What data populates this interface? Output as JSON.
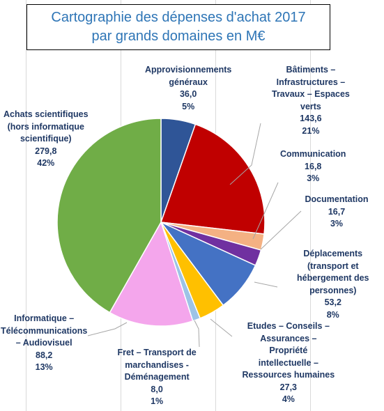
{
  "title": {
    "line1": "Cartographie des dépenses d'achat 2017",
    "line2": "par grands domaines en M€"
  },
  "chart_data": {
    "type": "pie",
    "title": "Cartographie des dépenses d'achat 2017 par grands domaines en M€",
    "slices": [
      {
        "label": "Approvisionnements généraux",
        "value": 36.0,
        "value_text": "36,0",
        "percent_text": "5%",
        "color": "#2f5597"
      },
      {
        "label": "Bâtiments – Infrastructures – Travaux – Espaces verts",
        "value": 143.6,
        "value_text": "143,6",
        "percent_text": "21%",
        "color": "#c00000"
      },
      {
        "label": "Communication",
        "value": 16.8,
        "value_text": "16,8",
        "percent_text": "3%",
        "color": "#f4b183"
      },
      {
        "label": "Documentation",
        "value": 16.7,
        "value_text": "16,7",
        "percent_text": "3%",
        "color": "#7030a0"
      },
      {
        "label": "Déplacements (transport et hébergement des personnes)",
        "value": 53.2,
        "value_text": "53,2",
        "percent_text": "8%",
        "color": "#4472c4"
      },
      {
        "label": "Etudes – Conseils – Assurances – Propriété intellectuelle – Ressources humaines",
        "value": 27.3,
        "value_text": "27,3",
        "percent_text": "4%",
        "color": "#ffc000"
      },
      {
        "label": "Fret – Transport de marchandises - Déménagement",
        "value": 8.0,
        "value_text": "8,0",
        "percent_text": "1%",
        "color": "#9dc3e6"
      },
      {
        "label": "Informatique – Télécommunications – Audiovisuel",
        "value": 88.2,
        "value_text": "88,2",
        "percent_text": "13%",
        "color": "#f4a6ec"
      },
      {
        "label": "Achats scientifiques (hors informatique scientifique)",
        "value": 279.8,
        "value_text": "279,8",
        "percent_text": "42%",
        "color": "#70ad47"
      }
    ],
    "label_lines": [
      [
        "Approvisionnements",
        "généraux"
      ],
      [
        "Bâtiments –",
        "Infrastructures –",
        "Travaux – Espaces",
        "verts"
      ],
      [
        "Communication"
      ],
      [
        "Documentation"
      ],
      [
        "Déplacements",
        "(transport et",
        "hébergement des",
        "personnes)"
      ],
      [
        "Etudes – Conseils –",
        "Assurances –",
        "Propriété",
        "intellectuelle –",
        "Ressources humaines"
      ],
      [
        "Fret – Transport de",
        "marchandises -",
        "Déménagement"
      ],
      [
        "Informatique –",
        "Télécommunications",
        "– Audiovisuel"
      ],
      [
        "Achats scientifiques",
        "(hors informatique",
        "scientifique)"
      ]
    ]
  }
}
